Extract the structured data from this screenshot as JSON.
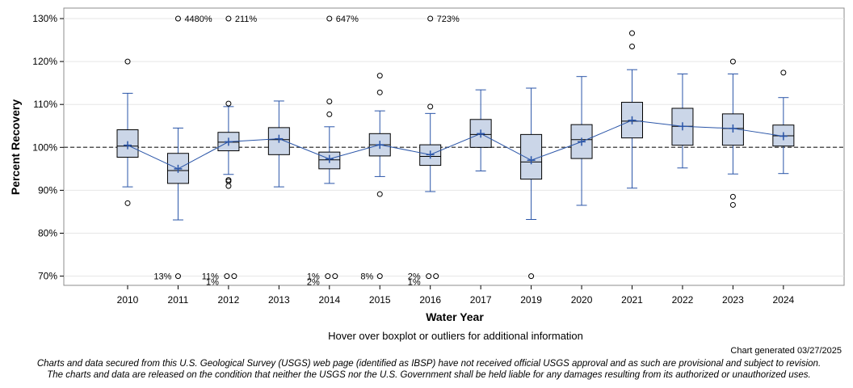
{
  "chart_data": {
    "type": "boxplot",
    "xlabel": "Water Year",
    "ylabel": "Percent Recovery",
    "ylim": [
      67.5,
      132
    ],
    "yticks": [
      70,
      80,
      90,
      100,
      110,
      120,
      130
    ],
    "ytick_labels": [
      "70%",
      "80%",
      "90%",
      "100%",
      "110%",
      "120%",
      "130%"
    ],
    "reference_line": 100,
    "categories": [
      "2010",
      "2011",
      "2012",
      "2013",
      "2014",
      "2015",
      "2016",
      "2017",
      "2019",
      "2020",
      "2021",
      "2022",
      "2023",
      "2024"
    ],
    "boxes": [
      {
        "year": "2010",
        "whisker_low": 90.8,
        "q1": 97.7,
        "median": 100.3,
        "q3": 104.1,
        "whisker_high": 112.6,
        "mean": 100.5,
        "outliers": [
          87,
          120
        ]
      },
      {
        "year": "2011",
        "whisker_low": 83.1,
        "q1": 91.6,
        "median": 94.6,
        "q3": 98.6,
        "whisker_high": 104.5,
        "mean": 95,
        "outliers": []
      },
      {
        "year": "2012",
        "whisker_low": 93.7,
        "q1": 99.2,
        "median": 101.2,
        "q3": 103.5,
        "whisker_high": 109.5,
        "mean": 101.3,
        "outliers": [
          91,
          92.1,
          92.4,
          110.2
        ]
      },
      {
        "year": "2013",
        "whisker_low": 90.8,
        "q1": 98.3,
        "median": 101.8,
        "q3": 104.6,
        "whisker_high": 110.8,
        "mean": 102,
        "outliers": []
      },
      {
        "year": "2014",
        "whisker_low": 91.6,
        "q1": 95,
        "median": 97.1,
        "q3": 98.9,
        "whisker_high": 104.8,
        "mean": 97.3,
        "outliers": [
          107.7,
          110.7
        ]
      },
      {
        "year": "2015",
        "whisker_low": 93.2,
        "q1": 98,
        "median": 100.6,
        "q3": 103.2,
        "whisker_high": 108.5,
        "mean": 100.6,
        "outliers": [
          89.1,
          112.8,
          116.7
        ]
      },
      {
        "year": "2016",
        "whisker_low": 89.7,
        "q1": 95.8,
        "median": 97.9,
        "q3": 100.6,
        "whisker_high": 107.9,
        "mean": 98.3,
        "outliers": [
          109.5
        ]
      },
      {
        "year": "2017",
        "whisker_low": 94.5,
        "q1": 100,
        "median": 103,
        "q3": 106.5,
        "whisker_high": 113.4,
        "mean": 103.2,
        "outliers": []
      },
      {
        "year": "2019",
        "whisker_low": 83.2,
        "q1": 92.6,
        "median": 96.6,
        "q3": 103,
        "whisker_high": 113.8,
        "mean": 97,
        "outliers": [
          70
        ]
      },
      {
        "year": "2020",
        "whisker_low": 86.5,
        "q1": 97.4,
        "median": 101.8,
        "q3": 105.3,
        "whisker_high": 116.5,
        "mean": 101.3,
        "outliers": []
      },
      {
        "year": "2021",
        "whisker_low": 90.5,
        "q1": 102.2,
        "median": 106.1,
        "q3": 110.5,
        "whisker_high": 118.1,
        "mean": 106.3,
        "outliers": [
          123.5,
          126.6
        ]
      },
      {
        "year": "2022",
        "whisker_low": 95.2,
        "q1": 100.5,
        "median": 104.9,
        "q3": 109.1,
        "whisker_high": 117.1,
        "mean": 104.9,
        "outliers": []
      },
      {
        "year": "2023",
        "whisker_low": 93.8,
        "q1": 100.5,
        "median": 104.4,
        "q3": 107.8,
        "whisker_high": 117.1,
        "mean": 104.4,
        "outliers": [
          86.6,
          88.5,
          120
        ]
      },
      {
        "year": "2024",
        "whisker_low": 93.9,
        "q1": 100.3,
        "median": 102.7,
        "q3": 105.2,
        "whisker_high": 111.6,
        "mean": 102.6,
        "outliers": [
          117.4
        ]
      }
    ],
    "offscale_high": [
      {
        "year": "2011",
        "label": "4480%"
      },
      {
        "year": "2012",
        "label": "211%"
      },
      {
        "year": "2014",
        "label": "647%"
      },
      {
        "year": "2016",
        "label": "723%"
      }
    ],
    "offscale_low": [
      {
        "year": "2011",
        "label": "13%",
        "count": 1
      },
      {
        "year": "2012",
        "label": "11%",
        "label2": "1%",
        "count": 2
      },
      {
        "year": "2014",
        "label": "1%",
        "label2": "2%",
        "count": 2
      },
      {
        "year": "2015",
        "label": "8%",
        "count": 1
      },
      {
        "year": "2016",
        "label": "2%",
        "label2": "1%",
        "count": 2
      }
    ],
    "colors": {
      "box_fill": "#cbd6e8",
      "box_stroke": "#000000",
      "whisker": "#2a55a8",
      "mean_line": "#2a55a8",
      "reference": "#555555",
      "grid": "#e6e6e6"
    }
  },
  "footer": {
    "hover_note": "Hover over boxplot or outliers for additional information",
    "generated": "Chart generated 03/27/2025",
    "disclaimer_line1": "Charts and data secured from this U.S. Geological Survey (USGS) web page (identified as IBSP) have not received official USGS approval and as such are provisional and subject to revision.",
    "disclaimer_line2": "The charts and data are released on the condition that neither the USGS nor the U.S. Government shall be held liable for any damages resulting from its authorized or unauthorized uses."
  }
}
